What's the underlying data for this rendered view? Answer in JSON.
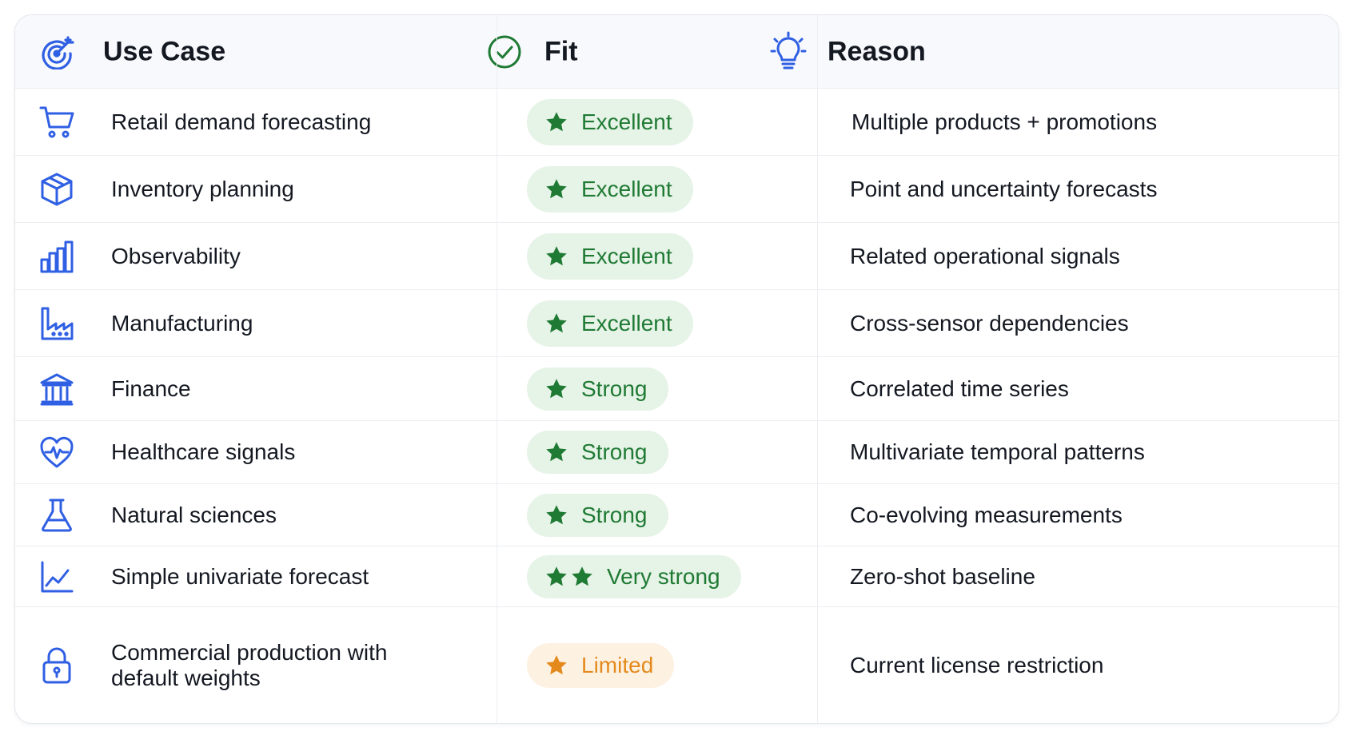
{
  "colors": {
    "accent_blue": "#2f5fe3",
    "fit_green": "#1f7a34",
    "fit_green_bg": "#e6f3e7",
    "fit_orange": "#e48a1c",
    "fit_orange_bg": "#fdf1e2",
    "header_bg": "#f8f9fc"
  },
  "header": {
    "use_case": {
      "label": "Use Case",
      "icon": "target-icon"
    },
    "fit": {
      "label": "Fit",
      "icon": "check-circle-icon"
    },
    "reason": {
      "label": "Reason",
      "icon": "lightbulb-icon"
    }
  },
  "rows": [
    {
      "use_case": "Retail demand forecasting",
      "icon": "shopping-cart-icon",
      "fit": "Excellent",
      "stars": 1,
      "tone": "green",
      "reason": "Multiple products + promotions"
    },
    {
      "use_case": "Inventory planning",
      "icon": "box-icon",
      "fit": "Excellent",
      "stars": 1,
      "tone": "green",
      "reason": "Point and uncertainty forecasts"
    },
    {
      "use_case": "Observability",
      "icon": "bar-chart-icon",
      "fit": "Excellent",
      "stars": 1,
      "tone": "green",
      "reason": "Related operational signals"
    },
    {
      "use_case": "Manufacturing",
      "icon": "factory-icon",
      "fit": "Excellent",
      "stars": 1,
      "tone": "green",
      "reason": "Cross-sensor dependencies"
    },
    {
      "use_case": "Finance",
      "icon": "bank-icon",
      "fit": "Strong",
      "stars": 1,
      "tone": "green",
      "reason": "Correlated time series"
    },
    {
      "use_case": "Healthcare signals",
      "icon": "heart-pulse-icon",
      "fit": "Strong",
      "stars": 1,
      "tone": "green",
      "reason": "Multivariate temporal patterns"
    },
    {
      "use_case": "Natural sciences",
      "icon": "flask-icon",
      "fit": "Strong",
      "stars": 1,
      "tone": "green",
      "reason": "Co-evolving measurements"
    },
    {
      "use_case": "Simple univariate forecast",
      "icon": "line-chart-icon",
      "fit": "Very strong",
      "stars": 2,
      "tone": "green",
      "reason": "Zero-shot baseline"
    },
    {
      "use_case": "Commercial production with\ndefault weights",
      "icon": "lock-icon",
      "fit": "Limited",
      "stars": 1,
      "tone": "orange",
      "reason": "Current license restriction"
    }
  ]
}
